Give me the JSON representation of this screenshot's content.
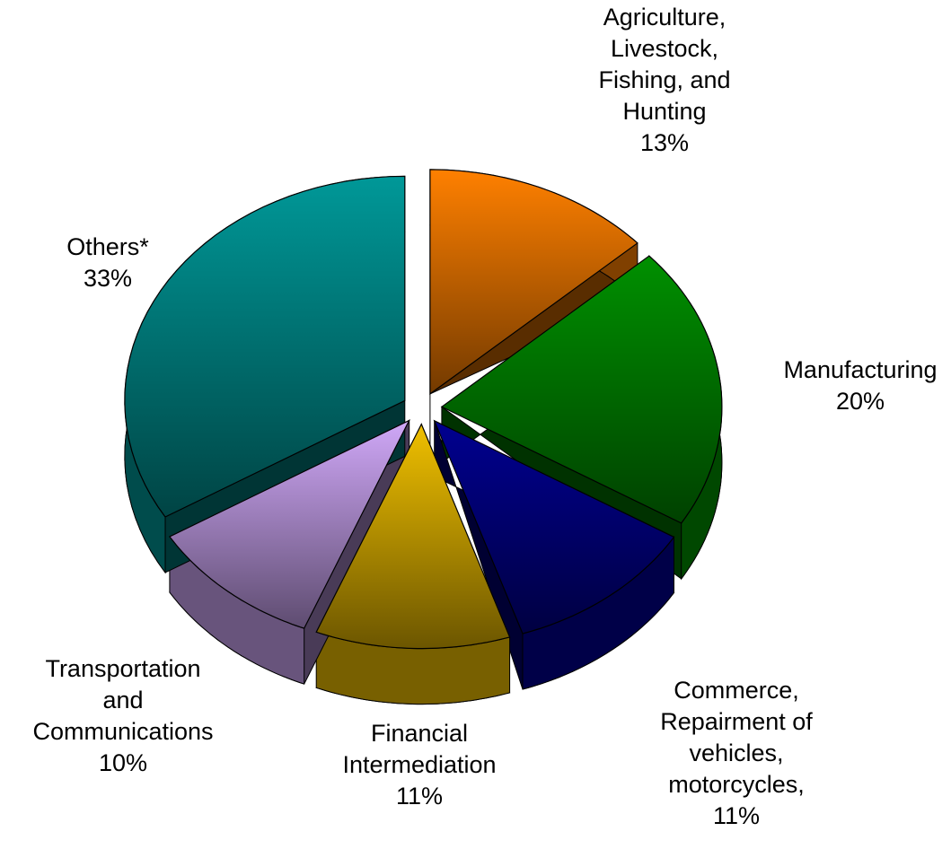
{
  "chart_data": {
    "type": "pie",
    "categories": [
      "Agriculture,\nLivestock,\nFishing, and\nHunting",
      "Manufacturing",
      "Commerce,\nRepairment  of\nvehicles,\nmotorcycles,",
      "Financial\nIntermediation",
      "Transportation\nand\nCommunications",
      "Others*"
    ],
    "values": [
      13,
      20,
      11,
      11,
      10,
      33
    ],
    "value_labels": [
      "13%",
      "20%",
      "11%",
      "11%",
      "10%",
      "33%"
    ],
    "colors": [
      "#ff8000",
      "#009000",
      "#000090",
      "#f0c000",
      "#d0a8f8",
      "#009898"
    ]
  }
}
